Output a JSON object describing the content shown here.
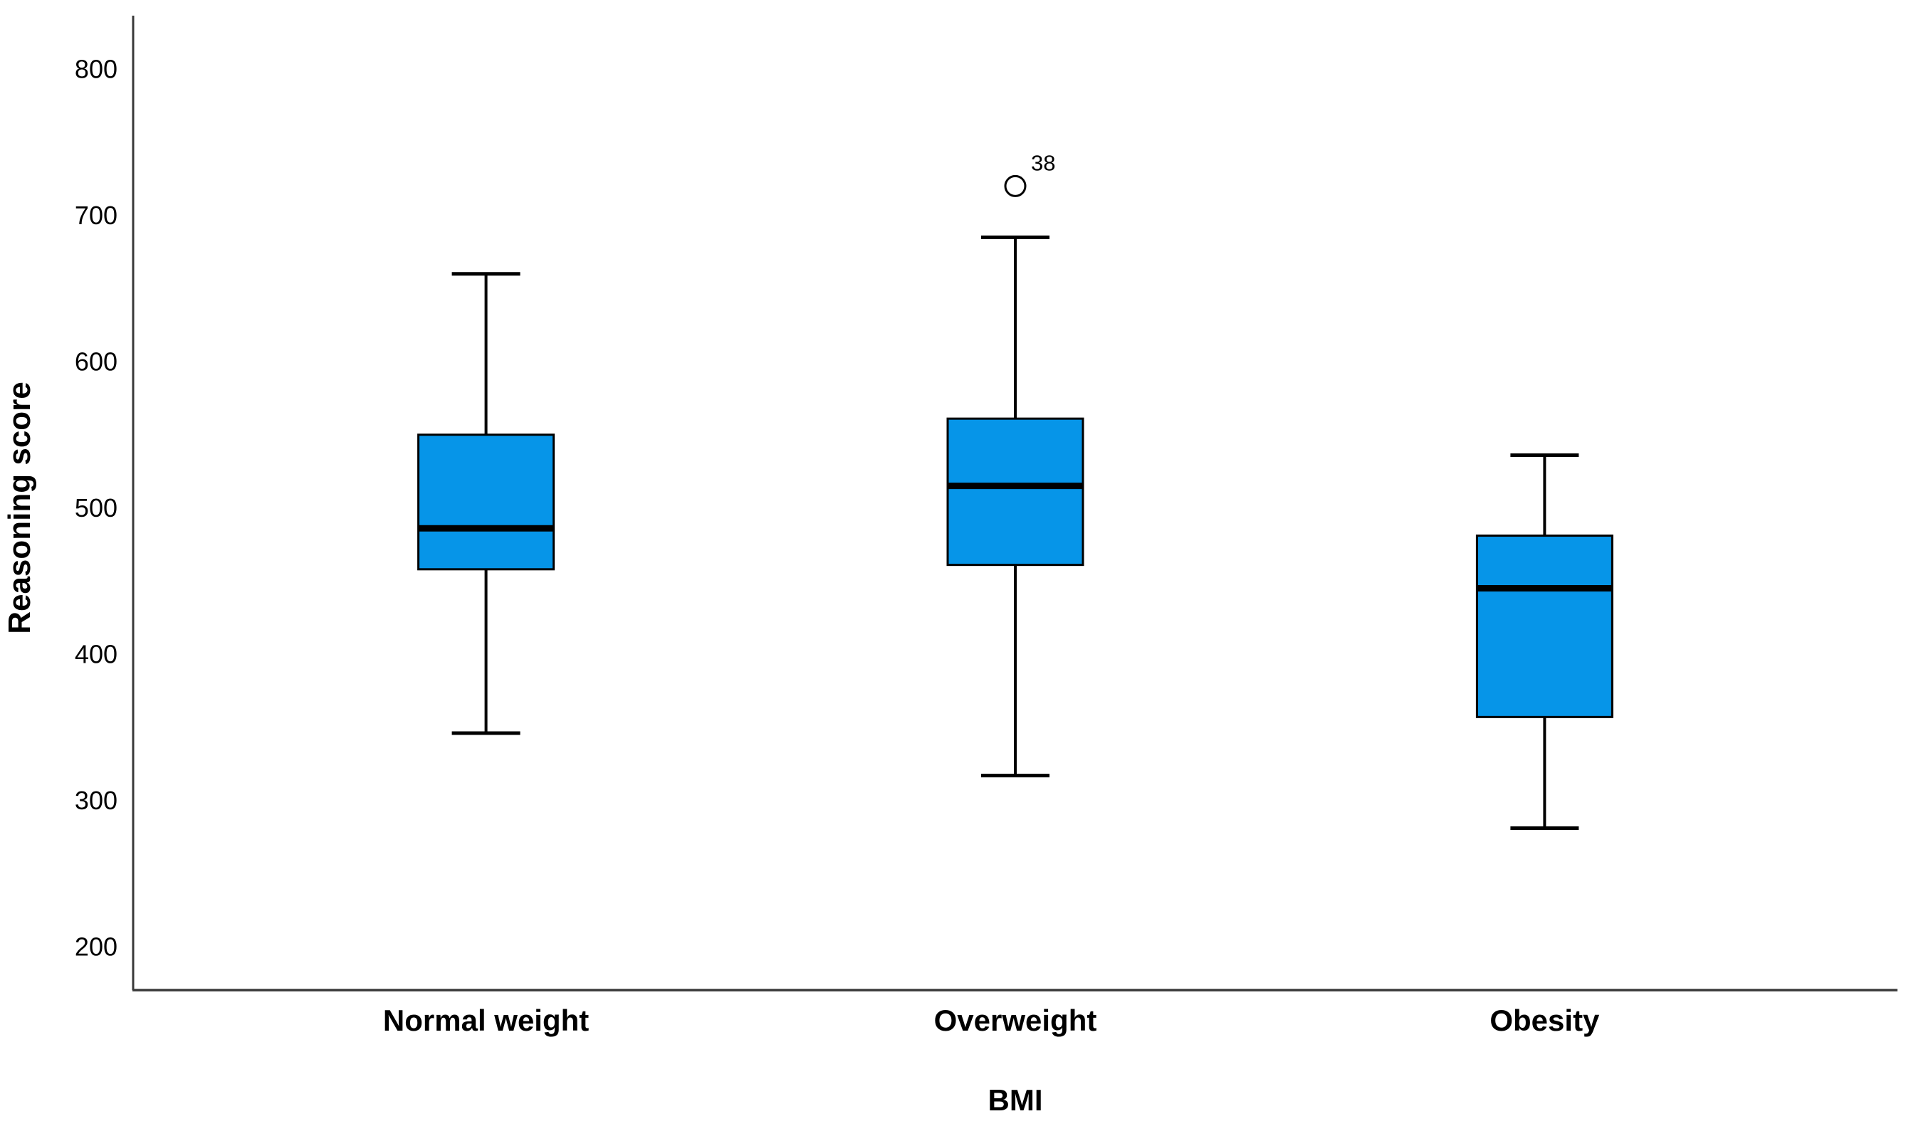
{
  "chart_data": {
    "type": "boxplot",
    "title": "",
    "xlabel": "BMI",
    "ylabel": "Reasoning score",
    "categories": [
      "Normal weight",
      "Overweight",
      "Obesity"
    ],
    "y_ticks": [
      200,
      300,
      400,
      500,
      600,
      700,
      800
    ],
    "ylim": [
      170,
      836
    ],
    "grid": false,
    "legend": "none",
    "series": [
      {
        "category": "Normal weight",
        "whisker_low": 346,
        "q1": 458,
        "median": 486,
        "q3": 550,
        "whisker_high": 660,
        "outliers": []
      },
      {
        "category": "Overweight",
        "whisker_low": 317,
        "q1": 461,
        "median": 515,
        "q3": 561,
        "whisker_high": 685,
        "outliers": [
          {
            "value": 720,
            "label": "38"
          }
        ]
      },
      {
        "category": "Obesity",
        "whisker_low": 281,
        "q1": 357,
        "median": 445,
        "q3": 481,
        "whisker_high": 536,
        "outliers": []
      }
    ],
    "colors": {
      "box_fill": "#0695e8",
      "box_border": "#000000",
      "median": "#000000",
      "whisker": "#000000",
      "outlier_stroke": "#000000",
      "axis": "#3a3a3a",
      "text": "#000000",
      "background": "#ffffff"
    }
  }
}
